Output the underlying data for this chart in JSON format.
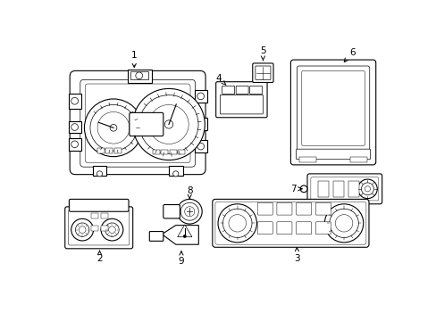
{
  "background_color": "#ffffff",
  "line_color": "#000000",
  "fig_width": 4.89,
  "fig_height": 3.6,
  "dpi": 100,
  "label_fontsize": 7.5
}
